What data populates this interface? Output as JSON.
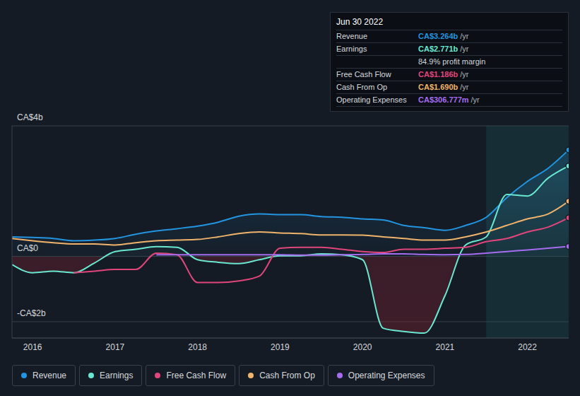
{
  "chart_data": {
    "type": "line",
    "x": [
      2015.75,
      2016,
      2016.25,
      2016.5,
      2016.75,
      2017,
      2017.25,
      2017.5,
      2017.75,
      2018,
      2018.25,
      2018.5,
      2018.75,
      2019,
      2019.25,
      2019.5,
      2019.75,
      2020,
      2020.25,
      2020.5,
      2020.75,
      2021,
      2021.25,
      2021.5,
      2021.75,
      2022,
      2022.25,
      2022.5
    ],
    "xlim": [
      2015.75,
      2022.5
    ],
    "xticks": [
      2016,
      2017,
      2018,
      2019,
      2020,
      2021,
      2022
    ],
    "ylim": [
      -2.5,
      4
    ],
    "yticks": [
      {
        "value": -2,
        "label": "-CA$2b"
      },
      {
        "value": 0,
        "label": "CA$0"
      },
      {
        "value": 4,
        "label": "CA$4b"
      }
    ],
    "grid": true,
    "legend": "bottom",
    "shaded_range": [
      2021.5,
      2022.5
    ],
    "series": [
      {
        "name": "Revenue",
        "color": "#2394df",
        "type": "area",
        "values": [
          0.6,
          0.58,
          0.55,
          0.48,
          0.5,
          0.55,
          0.68,
          0.78,
          0.85,
          0.93,
          1.05,
          1.23,
          1.3,
          1.28,
          1.28,
          1.22,
          1.2,
          1.15,
          1.12,
          0.95,
          0.88,
          0.8,
          0.95,
          1.2,
          1.8,
          2.3,
          2.7,
          3.264
        ]
      },
      {
        "name": "Earnings",
        "color": "#6ae7d1",
        "type": "area",
        "values": [
          -0.25,
          -0.5,
          -0.45,
          -0.5,
          -0.2,
          0.15,
          0.22,
          0.3,
          0.28,
          -0.1,
          -0.18,
          -0.22,
          -0.1,
          0.02,
          0.02,
          0.08,
          0.05,
          -0.1,
          -2.2,
          -2.3,
          -2.35,
          -1.2,
          0.35,
          0.6,
          1.9,
          1.85,
          2.4,
          2.771
        ]
      },
      {
        "name": "Free Cash Flow",
        "color": "#e0457b",
        "type": "line",
        "values": [
          null,
          null,
          null,
          -0.5,
          -0.45,
          -0.4,
          -0.4,
          0.1,
          0.05,
          -0.8,
          -0.8,
          -0.75,
          -0.6,
          0.25,
          0.28,
          0.28,
          0.22,
          0.15,
          0.12,
          0.22,
          0.22,
          0.25,
          0.28,
          0.45,
          0.55,
          0.75,
          0.9,
          1.186
        ]
      },
      {
        "name": "Cash From Op",
        "color": "#f0b36b",
        "type": "line",
        "values": [
          0.55,
          0.48,
          0.42,
          0.38,
          0.38,
          0.35,
          0.42,
          0.48,
          0.5,
          0.52,
          0.6,
          0.7,
          0.75,
          0.72,
          0.7,
          0.66,
          0.66,
          0.65,
          0.6,
          0.55,
          0.5,
          0.5,
          0.6,
          0.75,
          0.95,
          1.15,
          1.3,
          1.69
        ]
      },
      {
        "name": "Operating Expenses",
        "color": "#a66cf0",
        "type": "line",
        "values": [
          null,
          null,
          null,
          null,
          null,
          null,
          null,
          0.05,
          0.05,
          0.05,
          0.05,
          0.05,
          0.05,
          0.05,
          0.04,
          0.04,
          0.05,
          0.06,
          0.08,
          0.08,
          0.06,
          0.05,
          0.06,
          0.1,
          0.15,
          0.2,
          0.25,
          0.307
        ]
      }
    ],
    "annotations": {
      "date": "Jun 30 2022",
      "rows": [
        {
          "label": "Revenue",
          "value": "CA$3.264b",
          "unit": "/yr",
          "color": "#2394df"
        },
        {
          "label": "Earnings",
          "value": "CA$2.771b",
          "unit": "/yr",
          "color": "#6ae7d1"
        },
        {
          "label": null,
          "value": "84.9% profit margin",
          "unit": null,
          "color": "#cfd3da"
        },
        {
          "label": "Free Cash Flow",
          "value": "CA$1.186b",
          "unit": "/yr",
          "color": "#e0457b"
        },
        {
          "label": "Cash From Op",
          "value": "CA$1.690b",
          "unit": "/yr",
          "color": "#f0b36b"
        },
        {
          "label": "Operating Expenses",
          "value": "CA$306.777m",
          "unit": "/yr",
          "color": "#a66cf0"
        }
      ]
    }
  }
}
